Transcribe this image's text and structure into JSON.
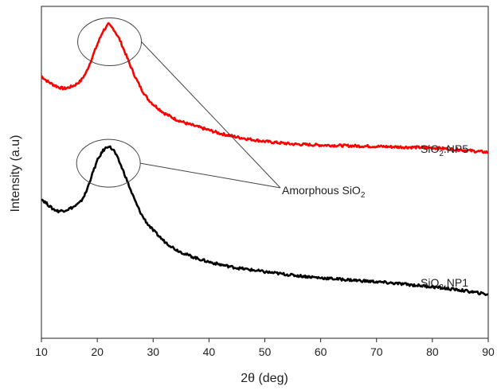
{
  "chart_data": {
    "type": "line",
    "title": "",
    "xlabel": "2θ (deg)",
    "ylabel": "Intensity (a.u)",
    "xlim": [
      10,
      90
    ],
    "ylim": [
      0,
      1
    ],
    "x_ticks": [
      10,
      20,
      30,
      40,
      50,
      60,
      70,
      80,
      90
    ],
    "grid": false,
    "y_tick_labels_shown": false,
    "series": [
      {
        "name_base": "SiO",
        "name_sub": "2",
        "name_suffix": ".NP5",
        "color": "#ff0000",
        "x": [
          10,
          11,
          12,
          13,
          14,
          15,
          16,
          17,
          18,
          19,
          20,
          21,
          22,
          23,
          24,
          25,
          26,
          27,
          28,
          29,
          30,
          32,
          34,
          36,
          38,
          40,
          42,
          45,
          48,
          50,
          55,
          60,
          65,
          70,
          75,
          80,
          85,
          90
        ],
        "y": [
          0.79,
          0.775,
          0.765,
          0.757,
          0.752,
          0.756,
          0.763,
          0.775,
          0.8,
          0.842,
          0.885,
          0.925,
          0.946,
          0.93,
          0.9,
          0.86,
          0.818,
          0.78,
          0.748,
          0.722,
          0.705,
          0.678,
          0.66,
          0.647,
          0.637,
          0.627,
          0.617,
          0.606,
          0.598,
          0.593,
          0.585,
          0.582,
          0.58,
          0.578,
          0.576,
          0.574,
          0.568,
          0.56
        ]
      },
      {
        "name_base": "SiO",
        "name_sub": "2",
        "name_suffix": ".NP1",
        "color": "#000000",
        "x": [
          10,
          11,
          12,
          13,
          14,
          15,
          16,
          17,
          18,
          19,
          20,
          21,
          22,
          23,
          24,
          25,
          26,
          27,
          28,
          29,
          30,
          32,
          34,
          36,
          38,
          40,
          42,
          45,
          48,
          50,
          55,
          60,
          65,
          70,
          75,
          80,
          85,
          90
        ],
        "y": [
          0.42,
          0.405,
          0.39,
          0.383,
          0.385,
          0.39,
          0.398,
          0.41,
          0.44,
          0.49,
          0.535,
          0.565,
          0.58,
          0.565,
          0.53,
          0.49,
          0.445,
          0.405,
          0.37,
          0.345,
          0.325,
          0.292,
          0.268,
          0.252,
          0.24,
          0.23,
          0.222,
          0.212,
          0.205,
          0.2,
          0.19,
          0.182,
          0.176,
          0.17,
          0.163,
          0.155,
          0.145,
          0.132
        ]
      }
    ],
    "annotations": [
      {
        "text_base": "Amorphous SiO",
        "text_sub": "2"
      }
    ]
  }
}
